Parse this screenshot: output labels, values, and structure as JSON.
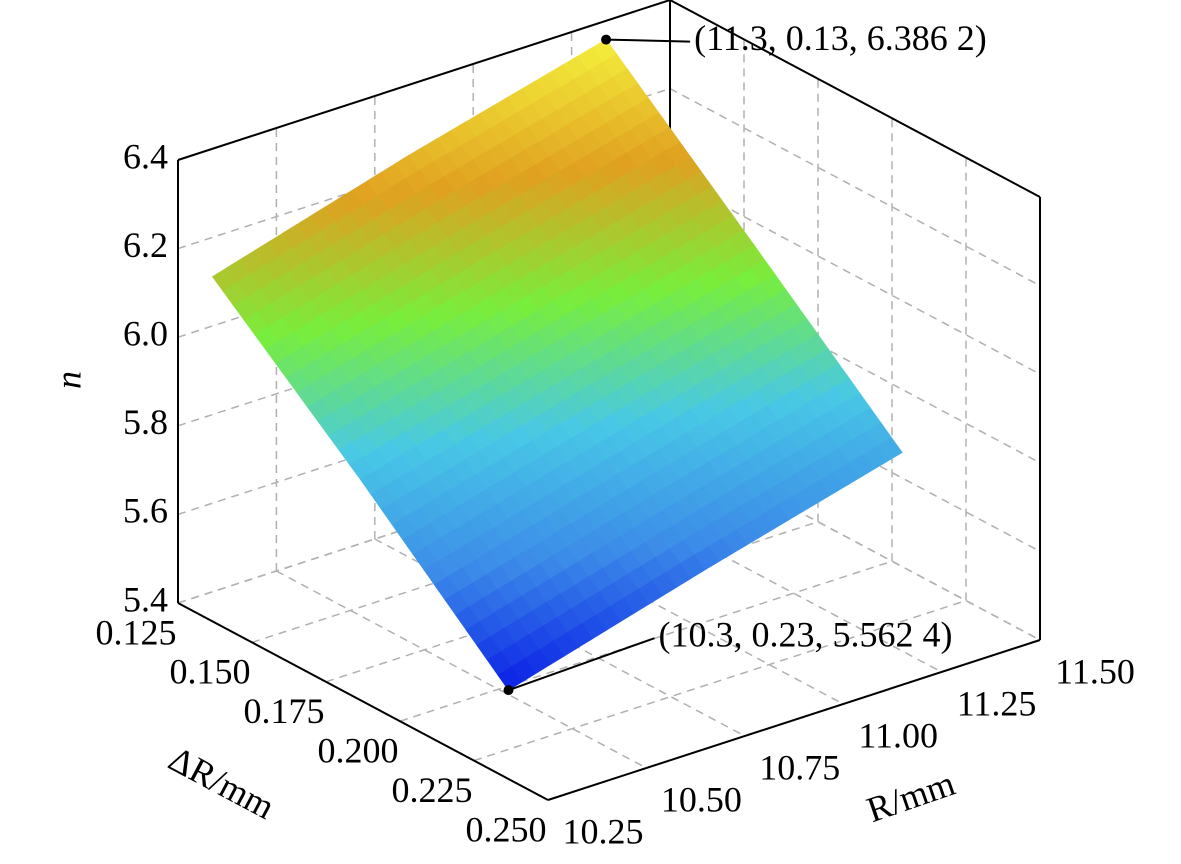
{
  "chart_data": {
    "type": "surface",
    "xlabel": "ΔR/mm",
    "ylabel": "R/mm",
    "zlabel": "n",
    "x": [
      0.13,
      0.18,
      0.23
    ],
    "y": [
      10.3,
      10.8,
      11.3
    ],
    "z": [
      [
        6.14,
        6.27,
        6.3862
      ],
      [
        5.86,
        5.98,
        6.1
      ],
      [
        5.5624,
        5.69,
        5.81
      ]
    ],
    "xlim": [
      0.125,
      0.25
    ],
    "xticks": [
      0.125,
      {
        "value": 0.15,
        "label": "0.150"
      },
      0.175,
      {
        "value": 0.2,
        "label": "0.200"
      },
      0.225,
      {
        "value": 0.25,
        "label": "0.250"
      }
    ],
    "ylim": [
      10.25,
      11.5
    ],
    "yticks": [
      10.25,
      {
        "value": 10.5,
        "label": "10.50"
      },
      10.75,
      {
        "value": 11,
        "label": "11.00"
      },
      11.25,
      {
        "value": 11.5,
        "label": "11.50"
      }
    ],
    "zlim": [
      5.4,
      6.4
    ],
    "zticks": [
      5.4,
      5.6,
      5.8,
      {
        "value": 6,
        "label": "6.0"
      },
      6.2,
      6.4
    ],
    "grid": true,
    "colormap": [
      "#0a1ee6",
      "#3c8ce8",
      "#48c8e6",
      "#78ee3c",
      "#e0a020",
      "#f4f03c"
    ],
    "annotations": [
      {
        "label": "(11.3, 0.13, 6.386 2)",
        "y": 11.3,
        "x": 0.13,
        "z": 6.3862
      },
      {
        "label": "(10.3, 0.23, 5.562 4)",
        "y": 10.3,
        "x": 0.23,
        "z": 5.5624
      }
    ]
  }
}
